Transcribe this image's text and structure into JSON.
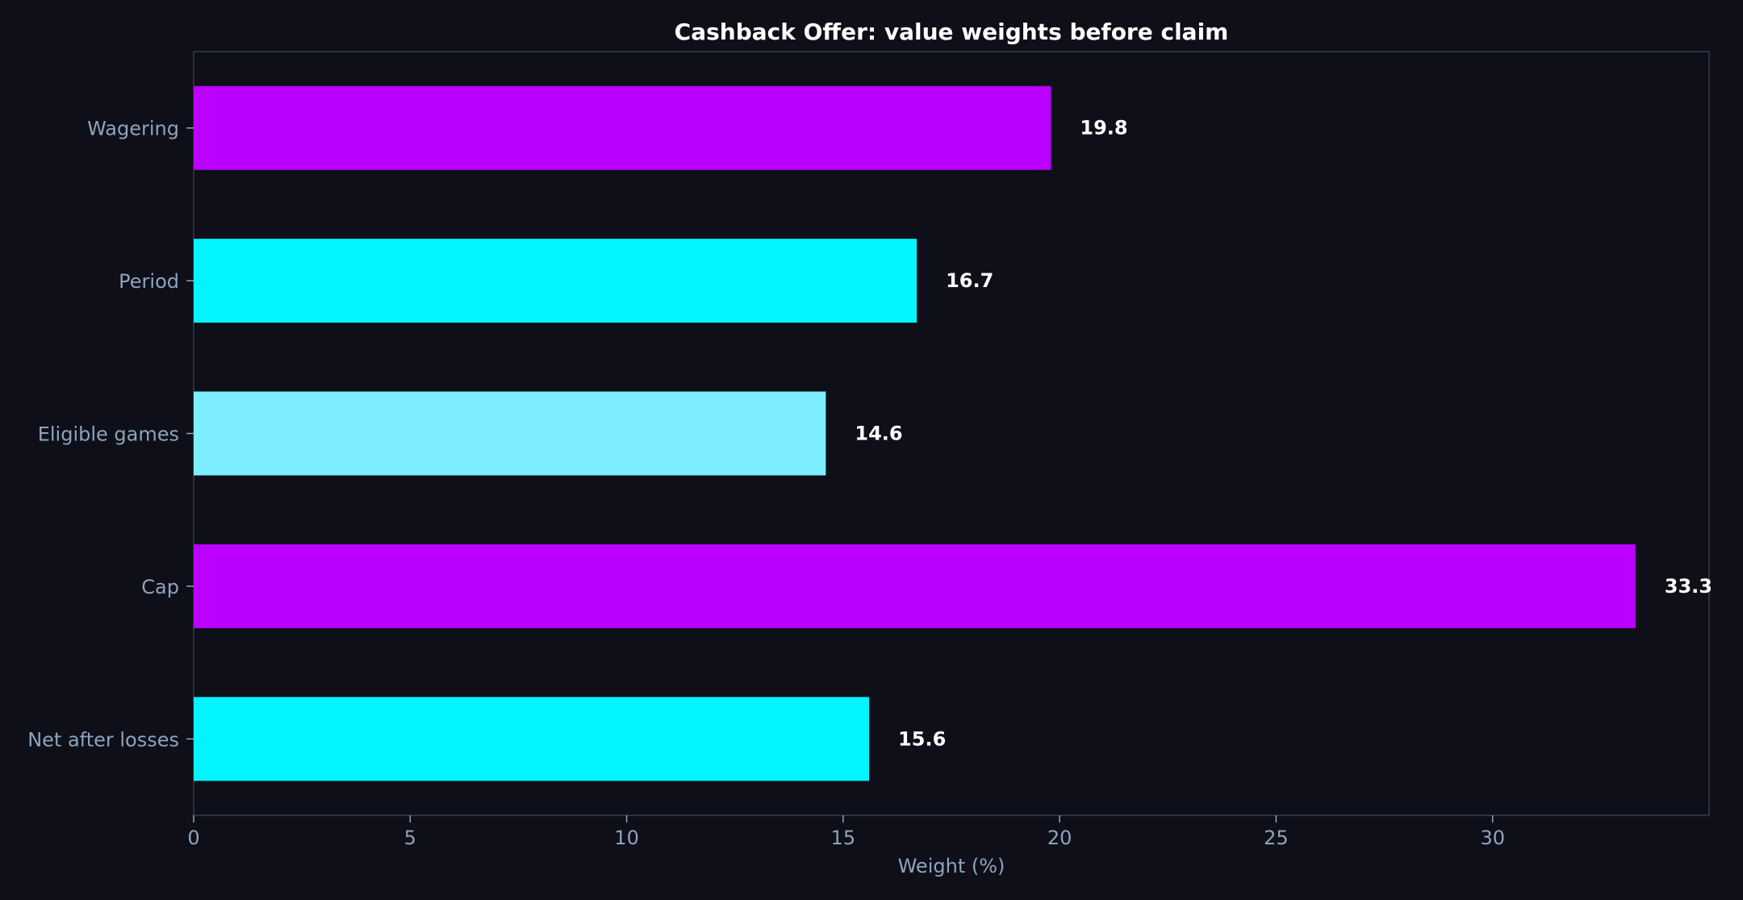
{
  "chart_data": {
    "type": "bar",
    "orientation": "horizontal",
    "title": "Cashback Offer: value weights before claim",
    "xlabel": "Weight (%)",
    "ylabel": "",
    "categories": [
      "Wagering",
      "Period",
      "Eligible games",
      "Cap",
      "Net after losses"
    ],
    "values": [
      19.8,
      16.7,
      14.6,
      33.3,
      15.6
    ],
    "value_labels": [
      "19.8",
      "16.7",
      "14.6",
      "33.3",
      "15.6"
    ],
    "colors": [
      "#bb00ff",
      "#00f5ff",
      "#7deeff",
      "#bb00ff",
      "#00f5ff"
    ],
    "xlim": [
      0,
      35
    ],
    "xticks": [
      0,
      5,
      10,
      15,
      20,
      25,
      30
    ],
    "xtick_labels": [
      "0",
      "5",
      "10",
      "15",
      "20",
      "25",
      "30"
    ],
    "grid": false,
    "legend": "none"
  },
  "theme": {
    "background": "#0e0f18",
    "axis_color": "#353a4c",
    "text_muted": "#8fa3bd",
    "text_bright": "#ffffff"
  }
}
